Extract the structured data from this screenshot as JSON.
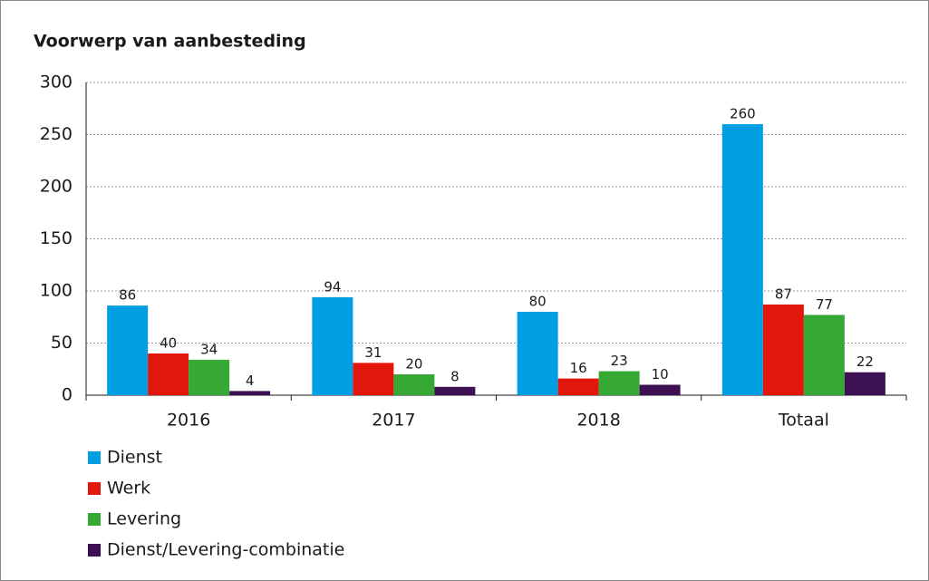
{
  "chart_data": {
    "type": "bar",
    "title": "Voorwerp van aanbesteding",
    "categories": [
      "2016",
      "2017",
      "2018",
      "Totaal"
    ],
    "series": [
      {
        "name": "Dienst",
        "color": "#009fe3",
        "values": [
          86,
          94,
          80,
          260
        ]
      },
      {
        "name": "Werk",
        "color": "#e3160b",
        "values": [
          40,
          31,
          16,
          87
        ]
      },
      {
        "name": "Levering",
        "color": "#36a935",
        "values": [
          34,
          20,
          23,
          77
        ]
      },
      {
        "name": "Dienst/Levering-combinatie",
        "color": "#3c1053",
        "values": [
          4,
          8,
          10,
          22
        ]
      }
    ],
    "ylim": [
      0,
      300
    ],
    "yticks": [
      0,
      50,
      100,
      150,
      200,
      250,
      300
    ],
    "grid": true
  }
}
